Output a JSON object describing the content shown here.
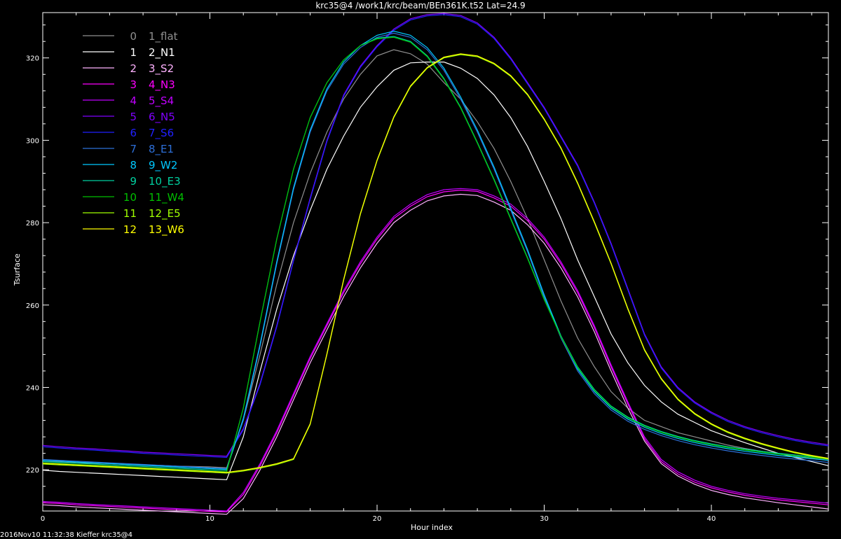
{
  "title": "krc35@4  /work1/krc/beam/BEn361K.t52 Lat=24.9",
  "footer": "2016Nov10 11:32:38 Kieffer krc35@4",
  "chart_data": {
    "type": "line",
    "title": "krc35@4  /work1/krc/beam/BEn361K.t52 Lat=24.9",
    "xlabel": "Hour index",
    "ylabel": "Tsurface",
    "xlim": [
      0,
      47
    ],
    "ylim": [
      210,
      331
    ],
    "xticks": [
      0,
      10,
      20,
      30,
      40
    ],
    "yticks": [
      220,
      240,
      260,
      280,
      300,
      320
    ],
    "grid": false,
    "legend": "top-left",
    "series": [
      {
        "index": "0",
        "name": "1_flat",
        "color": "#909090",
        "values": [
          222.0,
          221.9,
          221.7,
          221.6,
          221.5,
          221.3,
          221.2,
          221.1,
          220.9,
          220.8,
          220.7,
          220.5,
          232,
          248,
          265,
          280,
          292,
          302,
          310,
          316,
          320.5,
          322,
          321,
          318.5,
          314,
          310,
          304.5,
          298,
          290,
          281,
          271,
          261,
          252,
          245,
          239,
          235,
          232,
          230.5,
          229,
          228,
          227,
          226,
          225.2,
          224.5,
          223.9,
          223.3,
          222.8,
          222.3
        ]
      },
      {
        "index": "1",
        "name": "2_N1",
        "color": "#ffffff",
        "values": [
          219.9,
          219.6,
          219.4,
          219.2,
          219.0,
          218.8,
          218.6,
          218.4,
          218.2,
          218.0,
          217.8,
          217.6,
          228,
          244,
          259,
          272,
          283,
          293,
          301,
          308,
          313,
          317,
          318.8,
          319,
          319,
          317.5,
          315,
          311,
          305.5,
          298.5,
          290,
          281,
          271,
          262,
          253,
          246,
          240.5,
          236.5,
          233.5,
          231.5,
          229.5,
          228,
          226.6,
          225.3,
          224,
          223,
          222,
          221
        ]
      },
      {
        "index": "2",
        "name": "3_S2",
        "color": "#ffb2ff",
        "values": [
          211.5,
          211.3,
          211.0,
          210.8,
          210.6,
          210.4,
          210.2,
          210.0,
          209.8,
          209.6,
          209.4,
          209.2,
          213,
          220,
          228,
          237,
          246,
          254,
          262,
          269,
          275,
          280,
          283,
          285.3,
          286.5,
          286.9,
          286.6,
          285,
          283,
          279.5,
          275,
          269,
          262,
          253.5,
          244,
          235,
          227,
          221.5,
          218.5,
          216.5,
          215,
          214,
          213.2,
          212.6,
          212,
          211.5,
          211,
          210.5
        ]
      },
      {
        "index": "3",
        "name": "4_N3",
        "color": "#ff00ff",
        "values": [
          212.0,
          211.8,
          211.5,
          211.3,
          211.1,
          210.9,
          210.7,
          210.5,
          210.3,
          210.1,
          209.9,
          209.8,
          214,
          221,
          229,
          238,
          247,
          255,
          263,
          270,
          276,
          281,
          284,
          286.3,
          287.5,
          287.9,
          287.6,
          286,
          284,
          280.5,
          276,
          270,
          263,
          254.5,
          245,
          236,
          227.5,
          222,
          219,
          217,
          215.6,
          214.6,
          213.8,
          213.2,
          212.7,
          212.3,
          211.9,
          211.5
        ]
      },
      {
        "index": "4",
        "name": "5_S4",
        "color": "#c000ff",
        "values": [
          212.3,
          212.1,
          211.8,
          211.6,
          211.4,
          211.2,
          211.0,
          210.8,
          210.6,
          210.4,
          210.2,
          210.0,
          214.5,
          221.5,
          229.5,
          238.5,
          247.5,
          255.5,
          263.5,
          270.5,
          276.5,
          281.5,
          284.5,
          286.8,
          288,
          288.3,
          288,
          286.5,
          284.5,
          281,
          276.5,
          270.5,
          263.5,
          255,
          245.5,
          236.5,
          228,
          222.5,
          219.5,
          217.5,
          216,
          215,
          214.2,
          213.6,
          213.1,
          212.7,
          212.3,
          211.9
        ]
      },
      {
        "index": "5",
        "name": "6_N5",
        "color": "#8000ff",
        "values": [
          225.9,
          225.6,
          225.3,
          225.1,
          224.8,
          224.6,
          224.3,
          224.1,
          223.9,
          223.7,
          223.5,
          223.3,
          230,
          241,
          255,
          271,
          286,
          300,
          311,
          318,
          323,
          327,
          329.5,
          330.5,
          330.8,
          330.3,
          328.5,
          325,
          320,
          314,
          308,
          301,
          294,
          285,
          275,
          264,
          253,
          245,
          240,
          236.5,
          234,
          232,
          230.5,
          229.3,
          228.3,
          227.4,
          226.7,
          226.1
        ]
      },
      {
        "index": "6",
        "name": "7_S6",
        "color": "#2020ff",
        "values": [
          225.6,
          225.3,
          225.0,
          224.8,
          224.5,
          224.3,
          224.0,
          223.8,
          223.6,
          223.4,
          223.2,
          223.0,
          229.7,
          240.7,
          254.7,
          270.7,
          285.7,
          299.7,
          310.7,
          317.7,
          322.7,
          326.7,
          329.2,
          330.2,
          330.5,
          330,
          328.2,
          324.7,
          319.7,
          313.7,
          307.7,
          300.7,
          293.7,
          284.7,
          274.7,
          263.7,
          252.7,
          244.7,
          239.7,
          236.2,
          233.7,
          231.7,
          230.2,
          229,
          228,
          227.1,
          226.4,
          225.8
        ]
      },
      {
        "index": "7",
        "name": "8_E1",
        "color": "#2d6fd8",
        "values": [
          222.5,
          222.3,
          222.1,
          221.9,
          221.7,
          221.5,
          221.3,
          221.1,
          220.9,
          220.7,
          220.5,
          220.3,
          232,
          250,
          270,
          288,
          302,
          312,
          318.5,
          322.5,
          325,
          326,
          325,
          322,
          317,
          310,
          302,
          293,
          283,
          273,
          262,
          252,
          244,
          238.5,
          234.5,
          231.8,
          229.8,
          228.3,
          227.1,
          226.1,
          225.3,
          224.6,
          224,
          223.5,
          223,
          222.6,
          222.2,
          221.8
        ]
      },
      {
        "index": "8",
        "name": "9_W2",
        "color": "#00c8ff",
        "values": [
          222.3,
          222.1,
          221.9,
          221.7,
          221.5,
          221.3,
          221.1,
          220.9,
          220.7,
          220.5,
          220.3,
          220.1,
          232.5,
          250.5,
          270.5,
          288.5,
          302.5,
          312.5,
          319,
          323,
          325.5,
          326.5,
          325.5,
          322.5,
          317.5,
          310.5,
          302.5,
          293.5,
          283.5,
          273.5,
          262.5,
          252.5,
          244.5,
          239,
          235,
          232.3,
          230.3,
          228.8,
          227.6,
          226.6,
          225.8,
          225.1,
          224.5,
          224,
          223.5,
          223.1,
          222.7,
          222.3
        ]
      },
      {
        "index": "9",
        "name": "10_E3",
        "color": "#00d0a0",
        "values": [
          222.0,
          221.8,
          221.6,
          221.4,
          221.2,
          221.0,
          220.8,
          220.6,
          220.4,
          220.2,
          220.0,
          219.8,
          235,
          256,
          276,
          293,
          305.5,
          314,
          319.5,
          323,
          324.8,
          325.2,
          324,
          320.5,
          315,
          308,
          299.5,
          290.5,
          281,
          271.5,
          261.5,
          252.5,
          245,
          239.5,
          235.5,
          232.8,
          230.8,
          229.3,
          228.1,
          227.1,
          226.3,
          225.6,
          225,
          224.5,
          224,
          223.6,
          223.2,
          222.8
        ]
      },
      {
        "index": "10",
        "name": "11_W4",
        "color": "#00c000",
        "values": [
          221.7,
          221.5,
          221.3,
          221.1,
          220.9,
          220.7,
          220.5,
          220.3,
          220.1,
          219.9,
          219.7,
          219.5,
          235,
          256,
          276,
          293,
          305.5,
          314,
          319.5,
          323,
          324.6,
          325,
          323.8,
          320.3,
          314.8,
          307.8,
          299.3,
          290.3,
          280.8,
          271.3,
          261.3,
          252.3,
          244.8,
          239.3,
          235.3,
          232.6,
          230.6,
          229.1,
          227.9,
          226.9,
          226.1,
          225.4,
          224.8,
          224.3,
          223.8,
          223.4,
          223,
          222.6
        ]
      },
      {
        "index": "11",
        "name": "12_E5",
        "color": "#a0ff00",
        "values": [
          221.4,
          221.2,
          221.0,
          220.8,
          220.6,
          220.4,
          220.2,
          220.0,
          219.8,
          219.6,
          219.4,
          219.2,
          219.7,
          220.4,
          221.3,
          222.5,
          231,
          248,
          266,
          282,
          295,
          305.5,
          313,
          317.5,
          320,
          320.8,
          320.3,
          318.5,
          315.5,
          311,
          305,
          298,
          289.5,
          280,
          270,
          259,
          249,
          242,
          237,
          233.5,
          231,
          229,
          227.5,
          226.2,
          225.1,
          224.1,
          223.3,
          222.6
        ]
      },
      {
        "index": "12",
        "name": "13_W6",
        "color": "#ffff00",
        "values": [
          221.6,
          221.4,
          221.2,
          221.0,
          220.8,
          220.6,
          220.4,
          220.2,
          220.0,
          219.8,
          219.6,
          219.4,
          219.9,
          220.6,
          221.5,
          222.7,
          231.2,
          248.2,
          266.2,
          282.2,
          295.2,
          305.7,
          313.2,
          317.7,
          320.2,
          321,
          320.5,
          318.7,
          315.7,
          311.2,
          305.2,
          298.2,
          289.7,
          280.2,
          270.2,
          259.2,
          249.2,
          242.2,
          237.2,
          233.7,
          231.2,
          229.2,
          227.7,
          226.4,
          225.3,
          224.3,
          223.5,
          222.8
        ]
      }
    ]
  }
}
